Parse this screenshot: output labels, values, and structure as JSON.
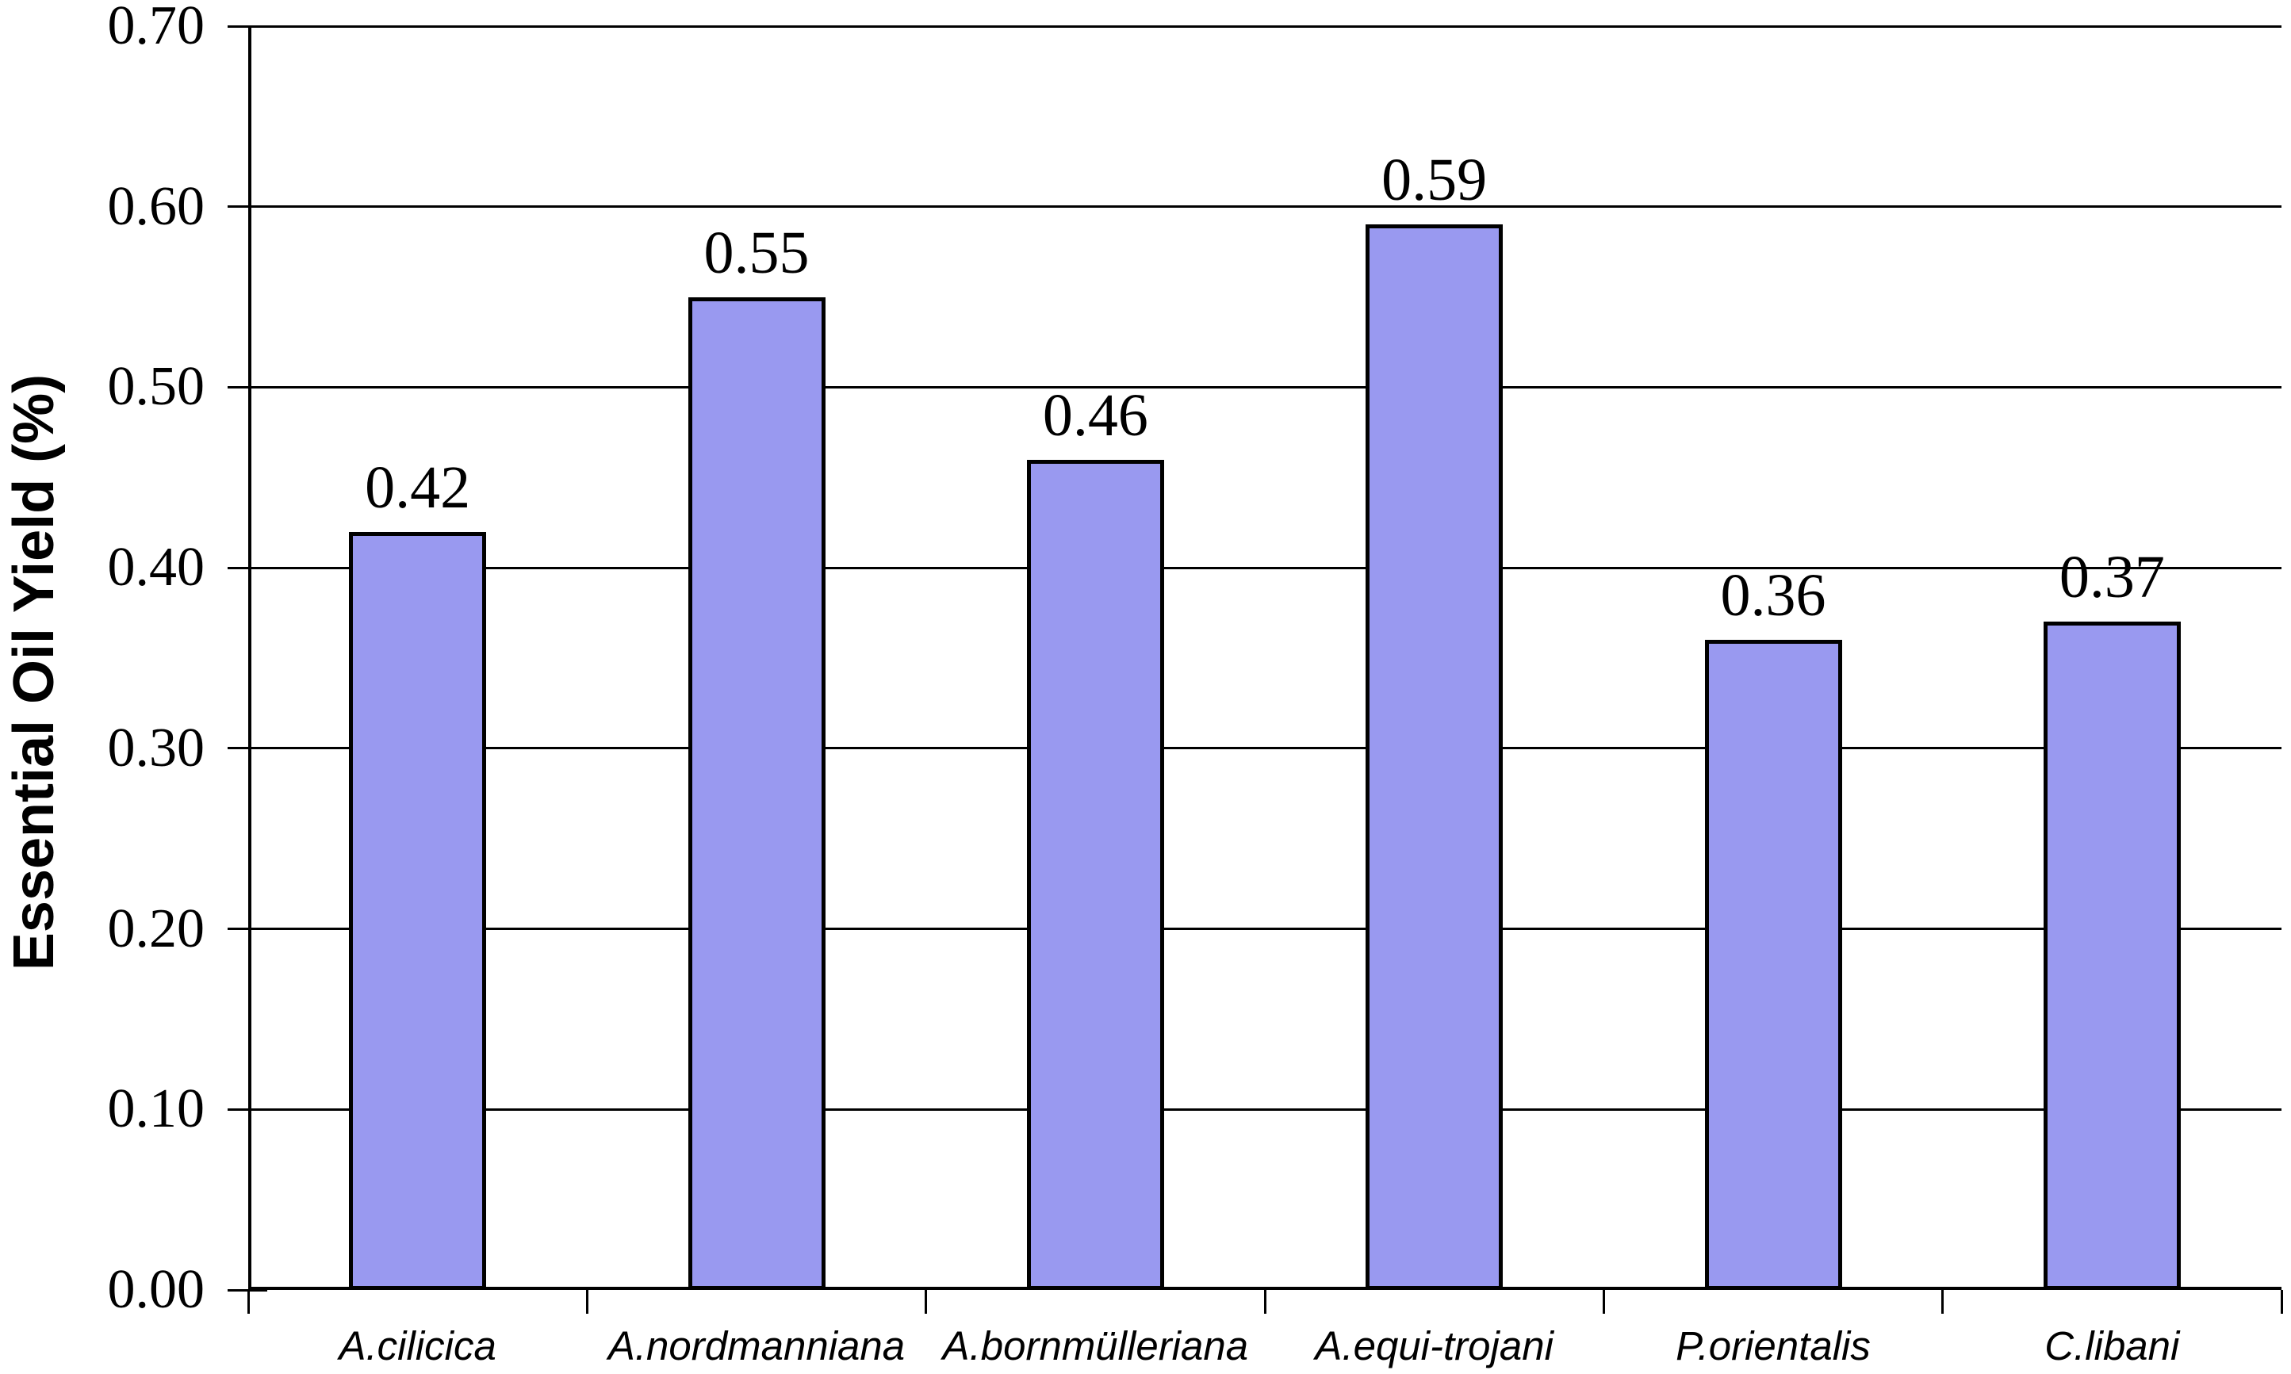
{
  "chart_data": {
    "type": "bar",
    "title": "",
    "xlabel": "",
    "ylabel": "Essential Oil Yield (%)",
    "categories": [
      "A.cilicica",
      "A.nordmanniana",
      "A.bornmülleriana",
      "A.equi-trojani",
      "P.orientalis",
      "C.libani"
    ],
    "values": [
      0.42,
      0.55,
      0.46,
      0.59,
      0.36,
      0.37
    ],
    "data_labels": [
      "0.42",
      "0.55",
      "0.46",
      "0.59",
      "0.36",
      "0.37"
    ],
    "ylim": [
      0.0,
      0.7
    ],
    "ytick_step": 0.1,
    "ytick_labels": [
      "0.00",
      "0.10",
      "0.20",
      "0.30",
      "0.40",
      "0.50",
      "0.60",
      "0.70"
    ],
    "grid": true,
    "legend": "none",
    "colors": {
      "bar_fill": "#9999f0",
      "bar_border": "#000000",
      "axis": "#000000",
      "gridline": "#000000",
      "text": "#000000",
      "background": "#ffffff"
    }
  }
}
